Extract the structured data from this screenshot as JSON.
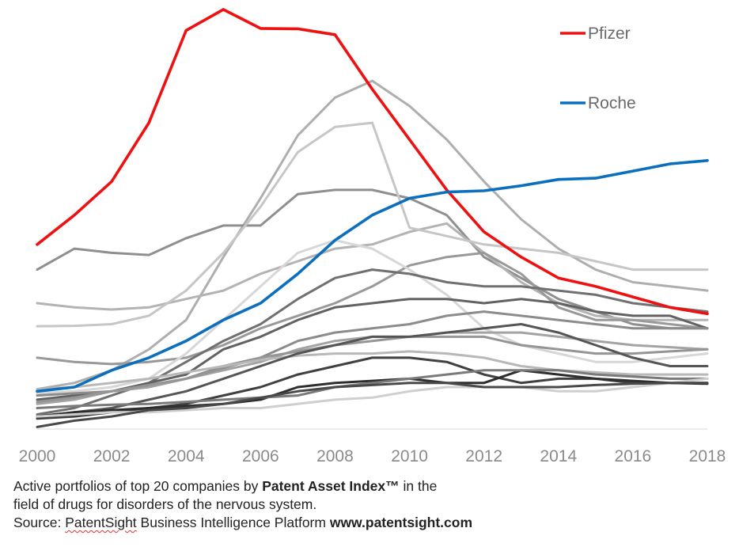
{
  "chart_data": {
    "type": "line",
    "title": "",
    "xlabel": "",
    "ylabel": "",
    "x": [
      2000,
      2001,
      2002,
      2003,
      2004,
      2005,
      2006,
      2007,
      2008,
      2009,
      2010,
      2011,
      2012,
      2013,
      2014,
      2015,
      2016,
      2017,
      2018
    ],
    "x_tick_labels": [
      "2000",
      "2002",
      "2004",
      "2006",
      "2008",
      "2010",
      "2012",
      "2014",
      "2016",
      "2018"
    ],
    "xlim": [
      2000,
      2018
    ],
    "ylim": [
      0,
      100
    ],
    "grid": false,
    "legend_position": "top-right",
    "series": [
      {
        "name": "Pfizer",
        "highlight": true,
        "color": "#ee1111",
        "values": [
          44,
          51,
          59,
          73,
          95,
          100,
          95.5,
          95.4,
          94,
          81,
          69,
          57,
          47,
          41,
          36,
          34,
          31.5,
          29,
          27.5
        ]
      },
      {
        "name": "Roche",
        "highlight": true,
        "color": "#0b6fbe",
        "values": [
          9,
          10,
          14,
          17,
          21,
          26,
          30,
          37,
          45,
          51,
          55,
          56.5,
          56.8,
          58,
          59.5,
          59.8,
          61.5,
          63.2,
          64
        ]
      },
      {
        "name": "",
        "highlight": false,
        "color": "#aeaeae",
        "values": [
          9.5,
          11,
          14,
          19,
          26,
          41,
          55,
          70,
          79,
          83,
          77,
          69,
          59,
          50,
          43,
          38,
          35,
          34,
          33
        ]
      },
      {
        "name": "",
        "highlight": false,
        "color": "#8f8f8f",
        "values": [
          38,
          43,
          42,
          41.5,
          45.5,
          48.5,
          48.5,
          56,
          57,
          57,
          55,
          51,
          41,
          36,
          31,
          28,
          25,
          24,
          24
        ]
      },
      {
        "name": "",
        "highlight": false,
        "color": "#b3b3b3",
        "values": [
          30,
          29,
          28.5,
          29,
          31,
          33,
          37,
          40,
          43,
          44,
          47,
          49,
          42,
          35,
          30,
          27,
          26,
          26,
          26
        ]
      },
      {
        "name": "",
        "highlight": false,
        "color": "#c6c6c6",
        "values": [
          24.5,
          24.6,
          25,
          27,
          33,
          42,
          53,
          66,
          72,
          73,
          48,
          46,
          44,
          43,
          42,
          40,
          38,
          38,
          38
        ]
      },
      {
        "name": "",
        "highlight": false,
        "color": "#999999",
        "values": [
          17,
          16,
          15.5,
          16,
          17,
          20,
          24,
          27,
          30,
          34,
          39,
          41,
          42,
          37,
          29,
          26,
          26,
          25,
          24
        ]
      },
      {
        "name": "",
        "highlight": false,
        "color": "#d7d7d7",
        "values": [
          8.5,
          9,
          10,
          12,
          18,
          26,
          34,
          42,
          45,
          43,
          38,
          32,
          24,
          20,
          18,
          16,
          16,
          17,
          18
        ]
      },
      {
        "name": "",
        "highlight": false,
        "color": "#707070",
        "values": [
          3.5,
          5,
          8,
          11,
          16,
          21,
          25,
          31,
          36,
          38,
          37,
          35,
          34,
          34,
          33,
          32,
          30,
          29,
          28
        ]
      },
      {
        "name": "",
        "highlight": false,
        "color": "#626262",
        "values": [
          7,
          8,
          9,
          11,
          13,
          19,
          22,
          26,
          29,
          30,
          31,
          31,
          30,
          31,
          30,
          28,
          27,
          27,
          24
        ]
      },
      {
        "name": "",
        "highlight": false,
        "color": "#8c8c8c",
        "values": [
          8,
          8.5,
          9,
          10,
          12,
          15,
          17,
          21,
          23,
          24,
          25,
          27,
          28,
          27,
          26,
          25,
          24,
          24,
          24
        ]
      },
      {
        "name": "",
        "highlight": false,
        "color": "#a3a3a3",
        "values": [
          6,
          7,
          9,
          10,
          12,
          14,
          16,
          19,
          21,
          22,
          22,
          23,
          23,
          23,
          22,
          21,
          20,
          19.5,
          19
        ]
      },
      {
        "name": "",
        "highlight": false,
        "color": "#959595",
        "values": [
          6.5,
          7.5,
          9,
          10.5,
          12,
          14.5,
          17,
          18.5,
          20,
          21,
          22,
          22,
          22,
          20,
          19,
          18,
          18,
          18.5,
          19
        ]
      },
      {
        "name": "",
        "highlight": false,
        "color": "#b8b8b8",
        "values": [
          9.5,
          10,
          11,
          12,
          13.5,
          15,
          16.5,
          17.5,
          18,
          18,
          18.5,
          18,
          17,
          15,
          14,
          13.5,
          13,
          13,
          13
        ]
      },
      {
        "name": "",
        "highlight": false,
        "color": "#555555",
        "values": [
          3,
          4,
          5,
          7,
          9,
          12,
          15,
          18,
          20,
          22,
          22,
          23,
          24,
          25,
          23,
          20,
          17,
          15,
          15
        ]
      },
      {
        "name": "",
        "highlight": false,
        "color": "#404040",
        "values": [
          2.5,
          3,
          4,
          5,
          6,
          8,
          10,
          13,
          15,
          17,
          17,
          16,
          13,
          11,
          12,
          12,
          11,
          11,
          11
        ]
      },
      {
        "name": "",
        "highlight": false,
        "color": "#2e2e2e",
        "values": [
          3,
          4,
          4.5,
          5,
          5.5,
          6,
          7,
          10,
          11,
          11.5,
          12,
          11,
          11,
          14,
          13,
          12,
          11.5,
          11,
          10.8
        ]
      },
      {
        "name": "",
        "highlight": false,
        "color": "#7a7a7a",
        "values": [
          5,
          5.5,
          5.8,
          6,
          6.5,
          7,
          7.5,
          8,
          10,
          11,
          12,
          13,
          14,
          14,
          14,
          13,
          12.5,
          12,
          12
        ]
      },
      {
        "name": "",
        "highlight": false,
        "color": "#cfcfcf",
        "values": [
          3,
          3.5,
          4,
          4,
          4.5,
          5,
          5,
          6,
          7,
          7.5,
          9,
          10,
          10,
          10,
          9,
          9,
          10,
          11,
          12
        ]
      },
      {
        "name": "",
        "highlight": false,
        "color": "#494949",
        "values": [
          0.5,
          2,
          3,
          4.5,
          5,
          6,
          7.5,
          9,
          10,
          10.5,
          11,
          11,
          10,
          10,
          10,
          10.5,
          10.8,
          11,
          11
        ]
      }
    ]
  },
  "caption": {
    "line1_prefix": "Active portfolios of top 20 companies by ",
    "line1_bold": "Patent Asset Index™",
    "line1_suffix": " in the",
    "line2": "field of drugs for disorders of the nervous system.",
    "line3_prefix": "Source: ",
    "line3_brand": "PatentSight",
    "line3_middle": " Business Intelligence Platform ",
    "line3_url": "www.patentsight.com"
  }
}
